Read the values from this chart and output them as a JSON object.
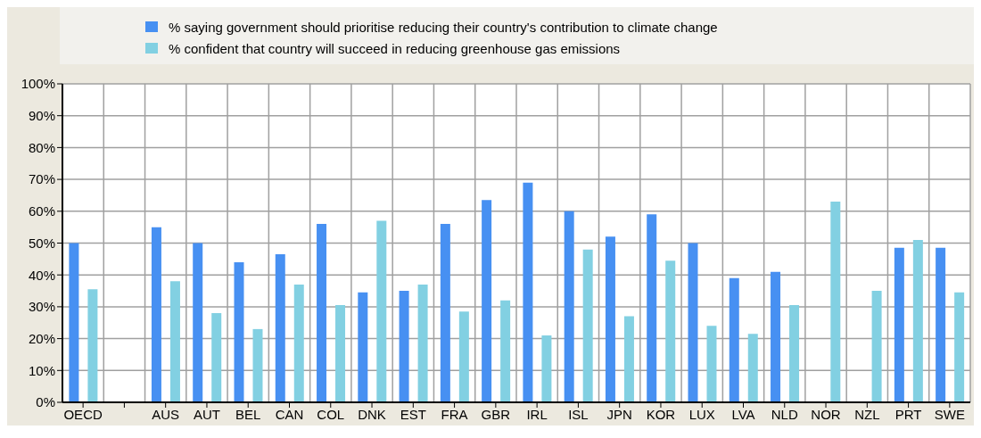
{
  "chart_data": {
    "type": "bar",
    "categories": [
      "OECD",
      null,
      "AUS",
      "AUT",
      "BEL",
      "CAN",
      "COL",
      "DNK",
      "EST",
      "FRA",
      "GBR",
      "IRL",
      "ISL",
      "JPN",
      "KOR",
      "LUX",
      "LVA",
      "NLD",
      "NOR",
      "NZL",
      "PRT",
      "SWE"
    ],
    "series": [
      {
        "name": "% saying government should prioritise reducing their country's contribution to  climate change",
        "color": "#4790f2",
        "values": [
          50,
          null,
          55,
          50,
          44,
          46.5,
          56,
          34.5,
          35,
          56,
          63.5,
          69,
          60,
          52,
          59,
          50,
          39,
          41,
          null,
          null,
          48.5,
          48.5
        ]
      },
      {
        "name": "% confident that country will succeed in reducing greenhouse gas emissions",
        "color": "#82d0e2",
        "values": [
          35.5,
          null,
          38,
          28,
          23,
          37,
          30.5,
          57,
          37,
          28.5,
          32,
          21,
          48,
          27,
          44.5,
          24,
          21.5,
          30.5,
          63,
          35,
          51,
          34.5
        ]
      }
    ],
    "ylim": [
      0,
      100
    ],
    "yticks": [
      {
        "value": 0,
        "label": "0%"
      },
      {
        "value": 10,
        "label": "10%"
      },
      {
        "value": 20,
        "label": "20%"
      },
      {
        "value": 30,
        "label": "30%"
      },
      {
        "value": 40,
        "label": "40%"
      },
      {
        "value": 50,
        "label": "50%"
      },
      {
        "value": 60,
        "label": "60%"
      },
      {
        "value": 70,
        "label": "70%"
      },
      {
        "value": 80,
        "label": "80%"
      },
      {
        "value": 90,
        "label": "90%"
      },
      {
        "value": 100,
        "label": "100%"
      }
    ],
    "grid": true,
    "legend": "top"
  }
}
